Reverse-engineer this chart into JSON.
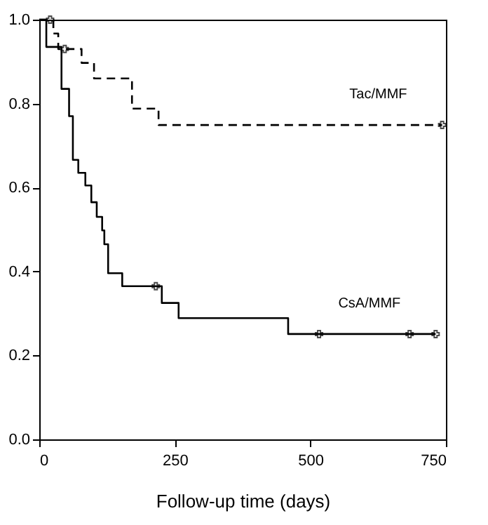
{
  "chart_data": {
    "type": "step",
    "xlabel": "Follow-up time (days)",
    "xlim": [
      0,
      750
    ],
    "xticks": [
      0,
      250,
      500,
      750
    ],
    "ylim": [
      0,
      1.0
    ],
    "yticks": [
      {
        "value": 0,
        "label": "0.0"
      },
      {
        "value": 0.2,
        "label": "0.2"
      },
      {
        "value": 0.4,
        "label": "0.4"
      },
      {
        "value": 0.6,
        "label": "0.6"
      },
      {
        "value": 0.8,
        "label": "0.8"
      },
      {
        "value": 1.0,
        "label": "1.0"
      }
    ],
    "grid": false,
    "series": [
      {
        "name": "Tac/MMF",
        "color": "#000000",
        "line_style": "dashed",
        "marker": "none",
        "x": [
          0,
          26,
          35,
          78,
          101,
          171,
          220,
          743
        ],
        "values": [
          1.0,
          0.967,
          0.93,
          0.897,
          0.86,
          0.788,
          0.749,
          0.749
        ]
      },
      {
        "name": "CsA/MMF",
        "color": "#000000",
        "line_style": "solid",
        "marker": "none",
        "x": [
          0,
          13,
          41,
          55,
          62,
          72,
          85,
          96,
          106,
          116,
          120,
          127,
          153,
          226,
          257,
          459,
          731
        ],
        "values": [
          1.0,
          0.935,
          0.835,
          0.77,
          0.666,
          0.635,
          0.605,
          0.565,
          0.53,
          0.498,
          0.465,
          0.396,
          0.365,
          0.325,
          0.289,
          0.251,
          0.251
        ]
      },
      {
        "type": "scatter",
        "color": "#000000",
        "marker": "cross",
        "x": [
          20,
          47,
          743
        ],
        "values": [
          1.0,
          0.93,
          0.749
        ]
      },
      {
        "type": "scatter",
        "color": "#000000",
        "marker": "cross",
        "x": [
          215,
          516,
          683,
          731
        ],
        "values": [
          0.365,
          0.251,
          0.251,
          0.251
        ]
      }
    ]
  }
}
